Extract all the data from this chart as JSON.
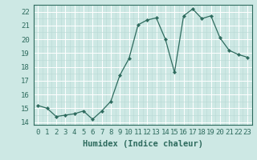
{
  "x": [
    0,
    1,
    2,
    3,
    4,
    5,
    6,
    7,
    8,
    9,
    10,
    11,
    12,
    13,
    14,
    15,
    16,
    17,
    18,
    19,
    20,
    21,
    22,
    23
  ],
  "y": [
    15.2,
    15.0,
    14.4,
    14.5,
    14.6,
    14.8,
    14.2,
    14.8,
    15.5,
    17.4,
    18.6,
    21.05,
    21.4,
    21.55,
    20.0,
    17.6,
    21.7,
    22.2,
    21.5,
    21.7,
    20.1,
    19.2,
    18.9,
    18.7
  ],
  "line_color": "#2e6b5e",
  "marker": "D",
  "marker_size": 2.2,
  "bg_color": "#cde8e4",
  "grid_major_color": "#ffffff",
  "grid_minor_color": "#b8d8d4",
  "xlabel": "Humidex (Indice chaleur)",
  "xlim": [
    -0.5,
    23.5
  ],
  "ylim": [
    13.8,
    22.5
  ],
  "yticks": [
    14,
    15,
    16,
    17,
    18,
    19,
    20,
    21,
    22
  ],
  "xticks": [
    0,
    1,
    2,
    3,
    4,
    5,
    6,
    7,
    8,
    9,
    10,
    11,
    12,
    13,
    14,
    15,
    16,
    17,
    18,
    19,
    20,
    21,
    22,
    23
  ],
  "tick_fontsize": 6.5,
  "label_fontsize": 7.5
}
